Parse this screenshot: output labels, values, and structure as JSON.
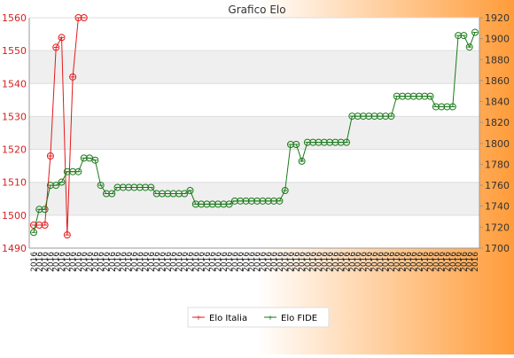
{
  "chart_data": {
    "type": "line",
    "title": "Grafico Elo",
    "y_left": {
      "lim": [
        1490,
        1560
      ],
      "ticks": [
        1490,
        1500,
        1510,
        1520,
        1530,
        1540,
        1550,
        1560
      ]
    },
    "y_right": {
      "lim": [
        1700,
        1920
      ],
      "ticks": [
        1700,
        1720,
        1740,
        1760,
        1780,
        1800,
        1820,
        1840,
        1860,
        1880,
        1900,
        1920
      ]
    },
    "grid": true,
    "legend_position": "bottom-center",
    "colors": {
      "elo_italia": "#e31a1c",
      "elo_fide": "#1a7a1a",
      "axis_left": "#d62020",
      "axis_right": "#333333",
      "band": "#efefef",
      "gradient_start": "#ffffff",
      "gradient_end": "#ff9c3a"
    },
    "x_count": 80,
    "x_tick_label": "2016",
    "series": [
      {
        "name": "Elo Italia",
        "axis": "left",
        "x": [
          0,
          1,
          2,
          3,
          4,
          5,
          6,
          7,
          8,
          9
        ],
        "y": [
          1497,
          1497,
          1497,
          1518,
          1551,
          1554,
          1494,
          1542,
          1560,
          1560
        ]
      },
      {
        "name": "Elo FIDE",
        "axis": "right",
        "x": [
          0,
          1,
          2,
          3,
          4,
          5,
          6,
          7,
          8,
          9,
          10,
          11,
          12,
          13,
          14,
          15,
          16,
          17,
          18,
          19,
          20,
          21,
          22,
          23,
          24,
          25,
          26,
          27,
          28,
          29,
          30,
          31,
          32,
          33,
          34,
          35,
          36,
          37,
          38,
          39,
          40,
          41,
          42,
          43,
          44,
          45,
          46,
          47,
          48,
          49,
          50,
          51,
          52,
          53,
          54,
          55,
          56,
          57,
          58,
          59,
          60,
          61,
          62,
          63,
          64,
          65,
          66,
          67,
          68,
          69,
          70,
          71,
          72,
          73,
          74,
          75,
          76,
          77,
          78,
          79
        ],
        "y": [
          1715,
          1737,
          1737,
          1760,
          1760,
          1763,
          1773,
          1773,
          1773,
          1786,
          1786,
          1784,
          1760,
          1752,
          1752,
          1758,
          1758,
          1758,
          1758,
          1758,
          1758,
          1758,
          1752,
          1752,
          1752,
          1752,
          1752,
          1752,
          1755,
          1742,
          1742,
          1742,
          1742,
          1742,
          1742,
          1742,
          1745,
          1745,
          1745,
          1745,
          1745,
          1745,
          1745,
          1745,
          1745,
          1755,
          1799,
          1799,
          1783,
          1801,
          1801,
          1801,
          1801,
          1801,
          1801,
          1801,
          1801,
          1826,
          1826,
          1826,
          1826,
          1826,
          1826,
          1826,
          1826,
          1845,
          1845,
          1845,
          1845,
          1845,
          1845,
          1845,
          1835,
          1835,
          1835,
          1835,
          1903,
          1903,
          1892,
          1906
        ]
      }
    ]
  }
}
